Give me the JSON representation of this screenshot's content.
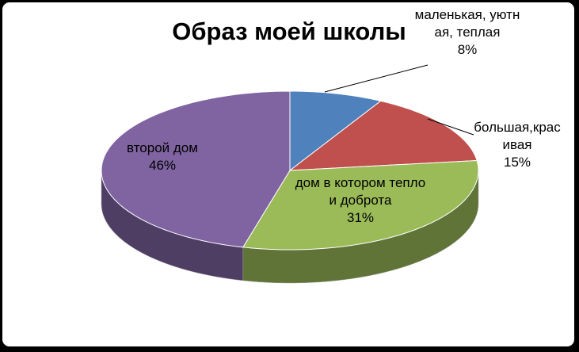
{
  "chart_data": {
    "type": "pie3d",
    "title": "Образ моей школы",
    "categories": [
      "маленькая, уютная, теплая",
      "большая,красивая",
      "дом в котором тепло и доброта",
      "второй дом"
    ],
    "values": [
      8,
      15,
      31,
      46
    ],
    "value_labels": [
      "8%",
      "15%",
      "31%",
      "46%"
    ],
    "colors": [
      "#4f81bd",
      "#c0504d",
      "#9bbb59",
      "#8064a2"
    ]
  }
}
